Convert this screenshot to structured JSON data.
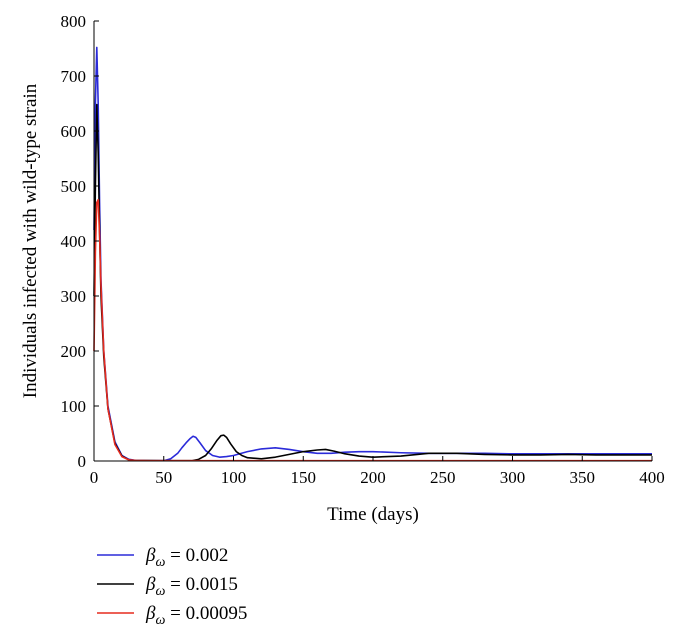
{
  "chart_data": {
    "type": "line",
    "title": "",
    "xlabel": "Time (days)",
    "ylabel": "Individuals infected with wild-type strain",
    "xlim": [
      0,
      400
    ],
    "ylim": [
      0,
      800
    ],
    "xticks": [
      "0",
      "50",
      "100",
      "150",
      "200",
      "250",
      "300",
      "350",
      "400"
    ],
    "yticks": [
      "0",
      "100",
      "200",
      "300",
      "400",
      "500",
      "600",
      "700",
      "800"
    ],
    "grid": false,
    "legend_position": "below plot",
    "series": [
      {
        "name": "β_ω = 0.002",
        "legend_symbol": "β",
        "legend_subscript": "ω",
        "legend_value": " = 0.002",
        "color": "#2b2bd9",
        "x": [
          0,
          1,
          2,
          3,
          4,
          5,
          7,
          10,
          15,
          20,
          25,
          30,
          40,
          50,
          55,
          60,
          63,
          66,
          69,
          71,
          73,
          76,
          80,
          85,
          90,
          95,
          100,
          110,
          120,
          130,
          140,
          150,
          160,
          170,
          180,
          190,
          200,
          220,
          240,
          260,
          280,
          300,
          320,
          340,
          360,
          380,
          400
        ],
        "y": [
          420,
          650,
          752,
          650,
          470,
          330,
          200,
          100,
          35,
          10,
          3,
          1,
          0.5,
          0.5,
          4,
          14,
          24,
          33,
          41,
          45,
          43,
          33,
          19,
          10,
          7,
          8,
          10,
          17,
          22,
          24,
          21,
          17,
          14,
          14,
          16,
          17,
          17,
          15,
          14,
          14,
          14,
          13,
          13,
          13,
          13,
          13,
          13
        ]
      },
      {
        "name": "β_ω = 0.0015",
        "legend_symbol": "β",
        "legend_subscript": "ω",
        "legend_value": " = 0.0015",
        "color": "#000000",
        "x": [
          0,
          1,
          2,
          3,
          4,
          5,
          7,
          10,
          15,
          20,
          25,
          30,
          50,
          70,
          75,
          80,
          84,
          88,
          91,
          93,
          95,
          98,
          102,
          106,
          110,
          120,
          130,
          140,
          150,
          160,
          166,
          172,
          180,
          190,
          200,
          220,
          240,
          260,
          280,
          300,
          320,
          340,
          360,
          380,
          400
        ],
        "y": [
          300,
          500,
          648,
          560,
          420,
          300,
          190,
          95,
          32,
          9,
          2,
          1,
          0.5,
          0.5,
          3,
          10,
          22,
          37,
          46,
          47,
          43,
          31,
          17,
          10,
          6,
          4,
          7,
          12,
          17,
          20,
          21,
          18,
          13,
          9,
          7,
          9,
          14,
          14,
          12,
          11,
          11,
          12,
          11,
          11,
          11
        ]
      },
      {
        "name": "β_ω = 0.00095",
        "legend_symbol": "β",
        "legend_subscript": "ω",
        "legend_value": " = 0.00095",
        "color": "#e52b1e",
        "x": [
          0,
          1,
          2,
          3,
          4,
          5,
          7,
          10,
          15,
          20,
          25,
          30,
          40,
          60,
          100,
          150,
          200,
          250,
          300,
          350,
          400
        ],
        "y": [
          200,
          380,
          470,
          475,
          410,
          320,
          200,
          95,
          30,
          8,
          2,
          1,
          0.5,
          0.5,
          0.5,
          0.5,
          0.5,
          0.5,
          0.5,
          0.5,
          0.5
        ]
      }
    ]
  }
}
